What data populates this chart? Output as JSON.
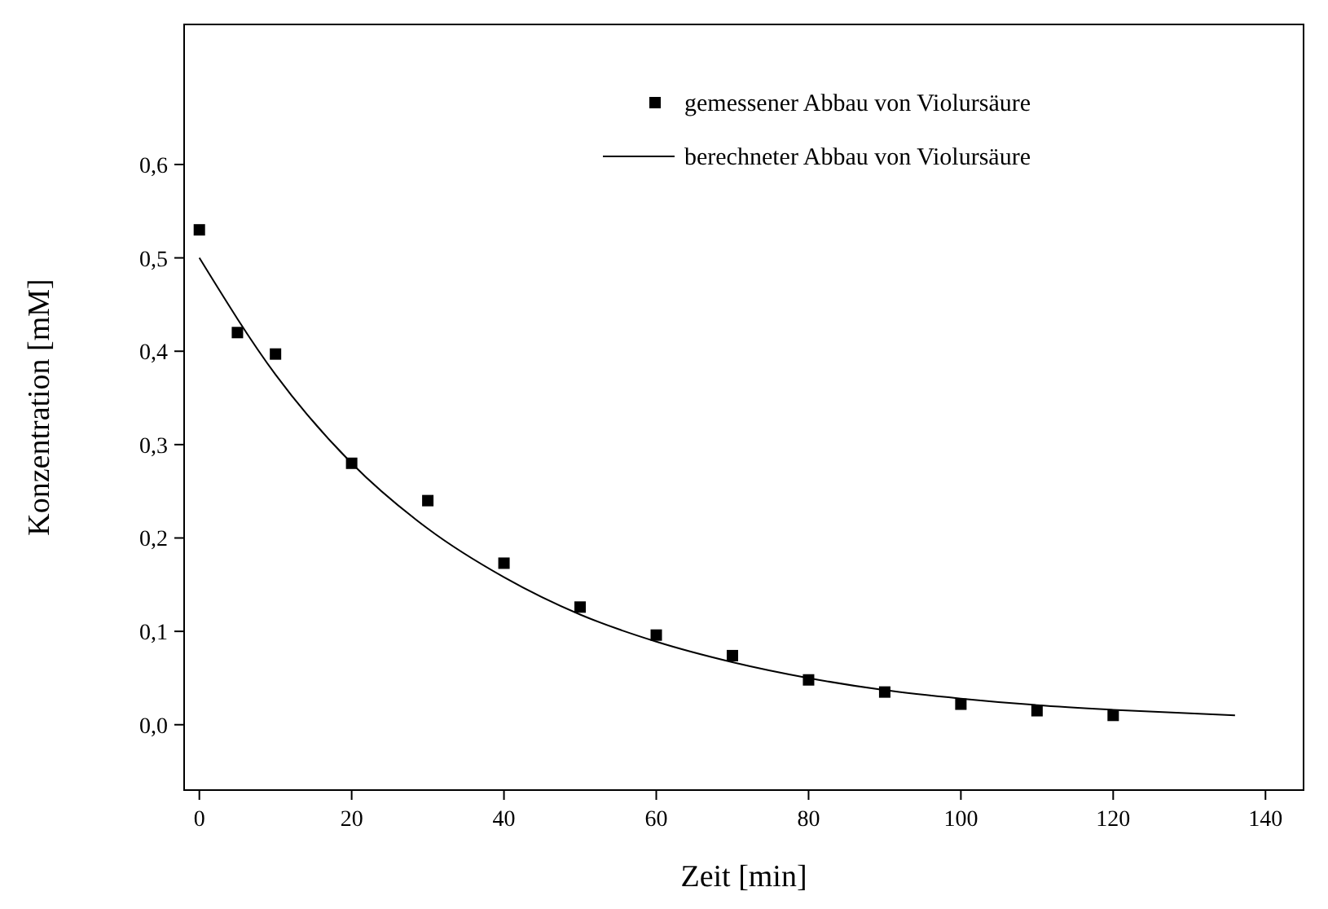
{
  "chart_data": {
    "type": "scatter",
    "xlabel": "Zeit [min]",
    "ylabel": "Konzentration [mM]",
    "xlim": [
      -2,
      145
    ],
    "ylim": [
      -0.07,
      0.75
    ],
    "xticks": [
      0,
      20,
      40,
      60,
      80,
      100,
      120,
      140
    ],
    "yticks": [
      {
        "value": 0,
        "label": "0,0"
      },
      {
        "value": 0.1,
        "label": "0,1"
      },
      {
        "value": 0.2,
        "label": "0,2"
      },
      {
        "value": 0.3,
        "label": "0,3"
      },
      {
        "value": 0.4,
        "label": "0,4"
      },
      {
        "value": 0.5,
        "label": "0,5"
      },
      {
        "value": 0.6,
        "label": "0,6"
      }
    ],
    "legend": "top right",
    "grid": false,
    "series": [
      {
        "name": "gemessener Abbau von Violursäure",
        "marker": "square",
        "color": "#000000",
        "x": [
          0,
          5,
          10,
          20,
          30,
          40,
          50,
          60,
          70,
          80,
          90,
          100,
          110,
          120
        ],
        "values": [
          0.53,
          0.42,
          0.397,
          0.28,
          0.24,
          0.173,
          0.126,
          0.096,
          0.074,
          0.048,
          0.035,
          0.022,
          0.015,
          0.01
        ]
      },
      {
        "name": "berechneter Abbau von Violursäure",
        "type": "line",
        "marker": "none",
        "line_style": "solid",
        "color": "#000000",
        "x": [
          0,
          10,
          20,
          30,
          40,
          50,
          60,
          70,
          80,
          90,
          100,
          110,
          120,
          136
        ],
        "values": [
          0.5,
          0.375,
          0.28,
          0.21,
          0.158,
          0.118,
          0.089,
          0.067,
          0.05,
          0.037,
          0.028,
          0.021,
          0.016,
          0.01
        ]
      }
    ]
  }
}
